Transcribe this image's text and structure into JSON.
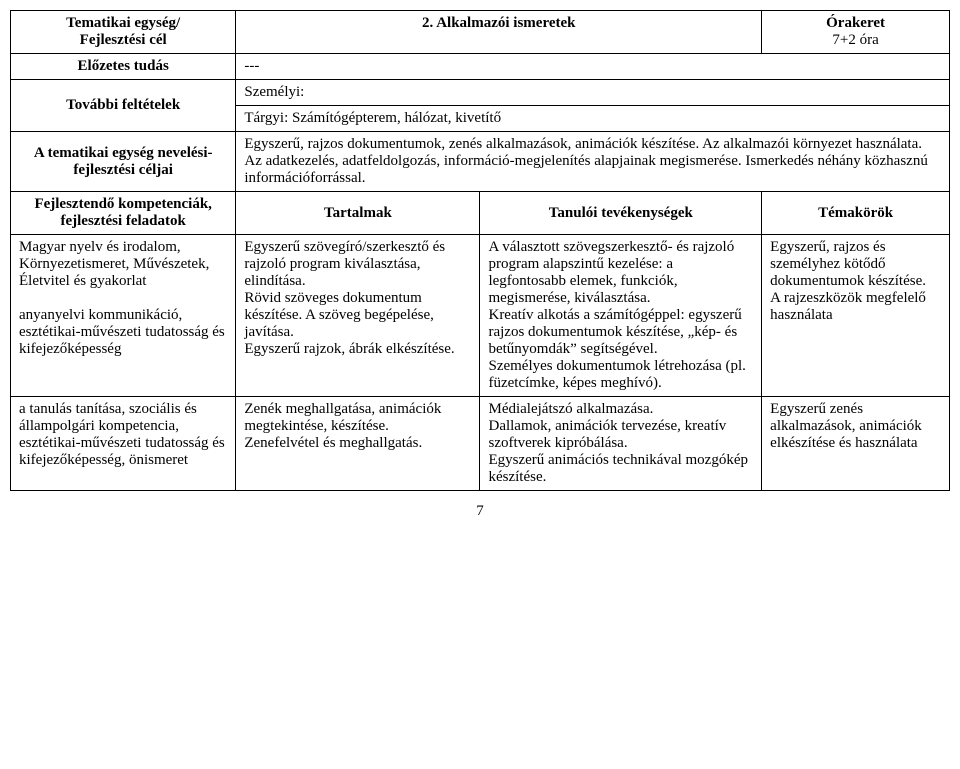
{
  "header": {
    "unit_label": "Tematikai egység/\nFejlesztési cél",
    "unit_value": "2.  Alkalmazói ismeretek",
    "hours_label": "Órakeret",
    "hours_value": "7+2 óra",
    "prior_label": "Előzetes tudás",
    "prior_value": "---",
    "conditions_label": "További feltételek",
    "conditions_personal_label": "Személyi:",
    "conditions_material": "Tárgyi: Számítógépterem, hálózat, kivetítő",
    "goals_label": "A tematikai egység nevelési-fejlesztési céljai",
    "goals_text": "Egyszerű, rajzos dokumentumok, zenés alkalmazások, animációk készítése. Az alkalmazói környezet használata.\nAz adatkezelés, adatfeldolgozás, információ-megjelenítés alapjainak megismerése. Ismerkedés néhány közhasznú információforrással."
  },
  "columns": {
    "competence": "Fejlesztendő kompetenciák, fejlesztési feladatok",
    "content": "Tartalmak",
    "activities": "Tanulói tevékenységek",
    "topics": "Témakörök"
  },
  "rows": [
    {
      "competence": "Magyar nyelv és irodalom, Környezetismeret, Művészetek, Életvitel és gyakorlat\n\nanyanyelvi kommunikáció, esztétikai-művészeti tudatosság és kifejezőképesség",
      "content": "Egyszerű szövegíró/szerkesztő és rajzoló program kiválasztása, elindítása.\nRövid szöveges dokumentum készítése. A szöveg begépelése, javítása.\nEgyszerű rajzok, ábrák elkészítése.",
      "activities": "A választott szövegszerkesztő- és rajzoló program alapszintű kezelése: a legfontosabb elemek, funkciók, megismerése, kiválasztása.\nKreatív alkotás a számítógéppel: egyszerű rajzos dokumentumok készítése, „kép- és betűnyomdák” segítségével.\nSzemélyes dokumentumok létrehozása (pl. füzetcímke, képes meghívó).",
      "topics": "Egyszerű, rajzos és személyhez kötődő dokumentumok készítése.\nA rajzeszközök megfelelő használata"
    },
    {
      "competence": "a tanulás tanítása, szociális és állampolgári kompetencia, esztétikai-művészeti tudatosság és kifejezőképesség, önismeret",
      "content": "Zenék meghallgatása, animációk megtekintése, készítése.\nZenefelvétel és meghallgatás.",
      "activities": "Médialejátszó alkalmazása.\nDallamok, animációk tervezése, kreatív szoftverek kipróbálása.\nEgyszerű animációs technikával mozgókép készítése.",
      "topics": "Egyszerű zenés alkalmazások, animációk elkészítése és használata"
    }
  ],
  "page_number": "7"
}
